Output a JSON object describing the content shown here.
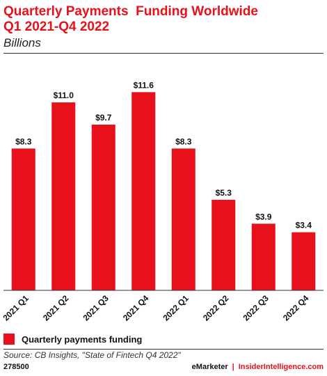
{
  "chart_data": {
    "type": "bar",
    "title_lines": [
      "Quarterly Payments  Funding Worldwide",
      "Q1 2021-Q4 2022"
    ],
    "subtitle": "Billions",
    "categories": [
      "2021 Q1",
      "2021 Q2",
      "2021 Q3",
      "2021 Q4",
      "2022 Q1",
      "2022 Q2",
      "2022 Q3",
      "2022 Q4"
    ],
    "series": [
      {
        "name": "Quarterly payments funding",
        "values": [
          8.3,
          11.0,
          9.7,
          11.6,
          8.3,
          5.3,
          3.9,
          3.4
        ],
        "labels": [
          "$8.3",
          "$11.0",
          "$9.7",
          "$11.6",
          "$8.3",
          "$5.3",
          "$3.9",
          "$3.4"
        ],
        "color": "#e8111b"
      }
    ],
    "ylim": [
      0,
      13
    ],
    "grid": false,
    "legend_position": "bottom-left"
  },
  "source": "Source: CB Insights, \"State of Fintech Q4 2022\"",
  "footer": {
    "chart_id": "278500",
    "brand_left": "eMarketer",
    "separator": "|",
    "brand_right": "InsiderIntelligence.com"
  }
}
